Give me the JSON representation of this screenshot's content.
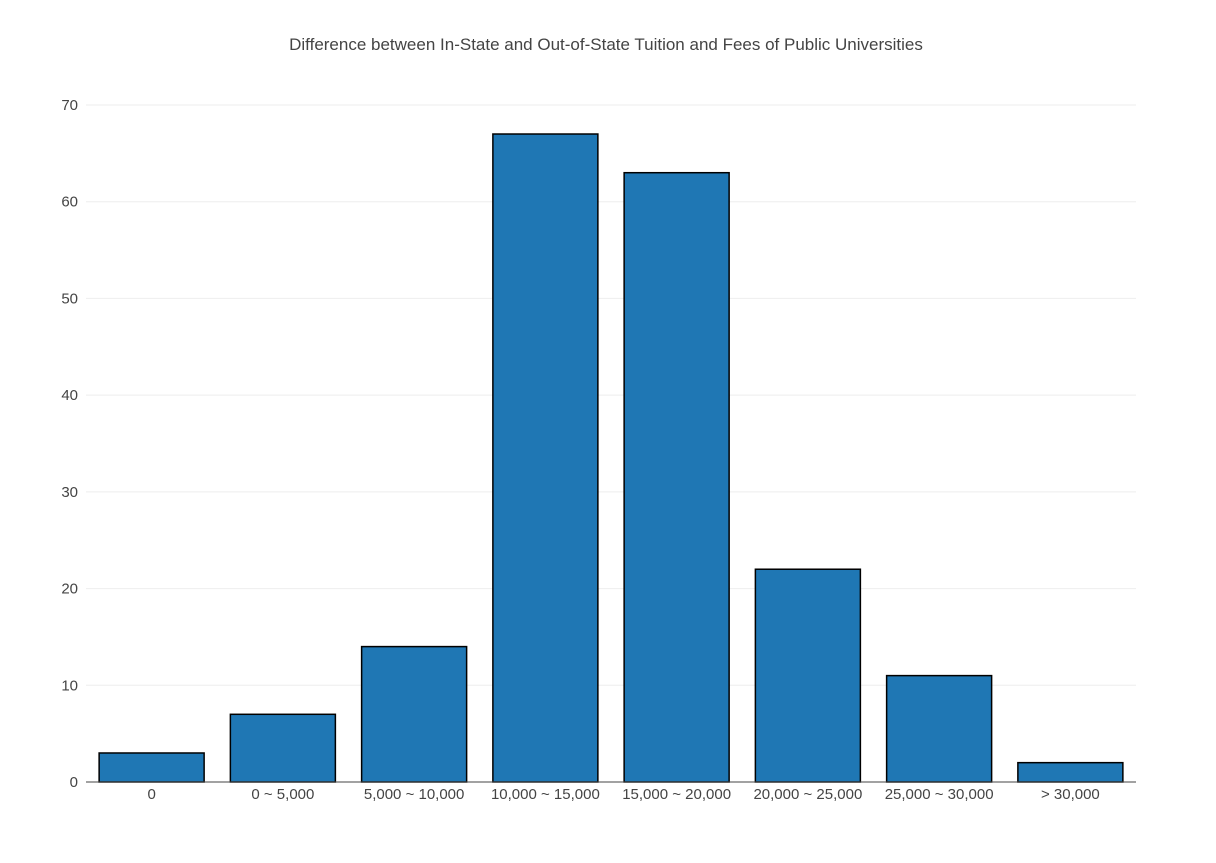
{
  "chart_data": {
    "type": "bar",
    "title": "Difference between In-State and Out-of-State Tuition and Fees of Public Universities",
    "xlabel": "",
    "ylabel": "",
    "categories": [
      "0",
      "0 ~ 5,000",
      "5,000 ~ 10,000",
      "10,000 ~ 15,000",
      "15,000 ~ 20,000",
      "20,000 ~ 25,000",
      "25,000 ~ 30,000",
      "> 30,000"
    ],
    "values": [
      3,
      7,
      14,
      67,
      63,
      22,
      11,
      2
    ],
    "ylim": [
      0,
      70
    ],
    "yticks": [
      0,
      10,
      20,
      30,
      40,
      50,
      60,
      70
    ],
    "grid": true,
    "legend": "none",
    "bar_color": "#1f77b4",
    "bar_outline_color": "#000000"
  }
}
